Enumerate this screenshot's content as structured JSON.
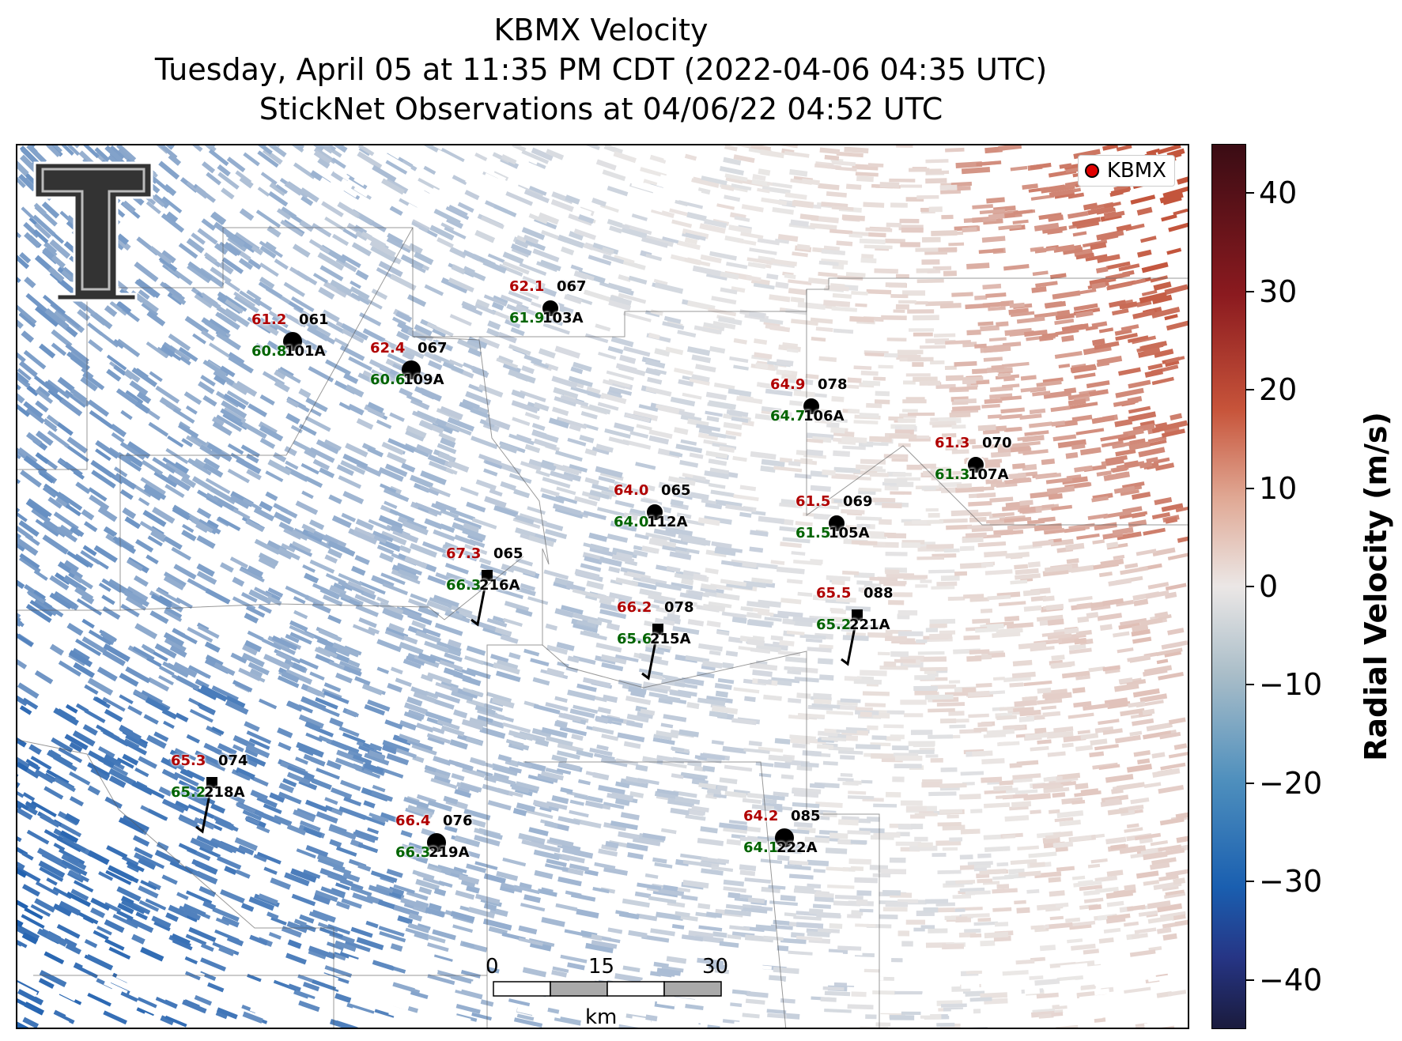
{
  "title": {
    "line1": "KBMX Velocity",
    "line2": "Tuesday, April 05 at 11:35 PM CDT (2022-04-06 04:35 UTC)",
    "line3": "StickNet Observations at 04/06/22 04:52 UTC"
  },
  "legend": {
    "label": "KBMX",
    "marker_color": "#e00000"
  },
  "colorbar": {
    "title": "Radial Velocity (m/s)",
    "range": [
      -45,
      45
    ],
    "ticks": [
      "40",
      "30",
      "20",
      "10",
      "0",
      "−10",
      "−20",
      "−30",
      "−40"
    ]
  },
  "scale_bar": {
    "labels": [
      "0",
      "15",
      "30"
    ],
    "unit": "km"
  },
  "stations": [
    {
      "id": "101A",
      "top": "61.2",
      "bottom": "60.8",
      "right": "061"
    },
    {
      "id": "103A",
      "top": "62.1",
      "bottom": "61.9",
      "right": "067"
    },
    {
      "id": "109A",
      "top": "62.4",
      "bottom": "60.6",
      "right": "067"
    },
    {
      "id": "106A",
      "top": "64.9",
      "bottom": "64.7",
      "right": "078"
    },
    {
      "id": "107A",
      "top": "61.3",
      "bottom": "61.3",
      "right": "070"
    },
    {
      "id": "112A",
      "top": "64.0",
      "bottom": "64.0",
      "right": "065"
    },
    {
      "id": "105A",
      "top": "61.5",
      "bottom": "61.5",
      "right": "069"
    },
    {
      "id": "216A",
      "top": "67.3",
      "bottom": "66.3",
      "right": "065"
    },
    {
      "id": "215A",
      "top": "66.2",
      "bottom": "65.6",
      "right": "078"
    },
    {
      "id": "221A",
      "top": "65.5",
      "bottom": "65.2",
      "right": "088"
    },
    {
      "id": "218A",
      "top": "65.3",
      "bottom": "65.2",
      "right": "074"
    },
    {
      "id": "219A",
      "top": "66.4",
      "bottom": "66.3",
      "right": "076"
    },
    {
      "id": "222A",
      "top": "64.2",
      "bottom": "64.1",
      "right": "085"
    }
  ]
}
